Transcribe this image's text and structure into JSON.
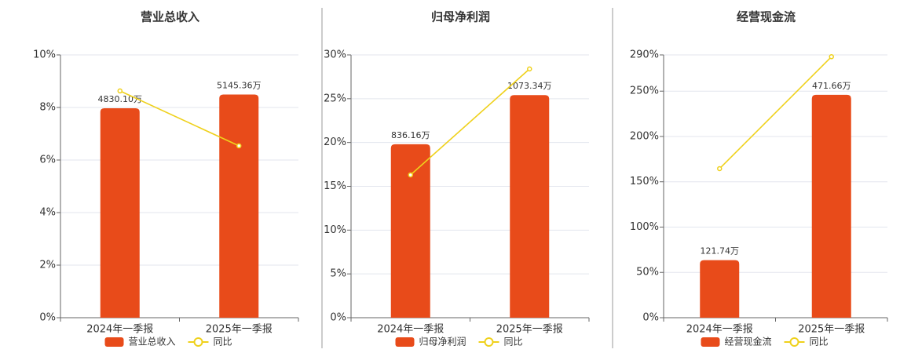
{
  "chart_data": [
    {
      "type": "bar_line",
      "title": "营业总收入",
      "categories": [
        "2024年一季报",
        "2025年一季报"
      ],
      "series": [
        {
          "name": "营业总收入",
          "color": "#e84b1a",
          "values": [
            4830.1,
            5145.36
          ],
          "value_labels": [
            "4830.10万",
            "5145.36万"
          ],
          "axis": "y2"
        },
        {
          "name": "同比",
          "color": "#efd11c",
          "values": [
            8.63,
            6.54
          ]
        }
      ],
      "ylim": [
        0,
        10
      ],
      "yticks": [
        {
          "value": 0,
          "label": "0%"
        },
        {
          "value": 2,
          "label": "2%"
        },
        {
          "value": 4,
          "label": "4%"
        },
        {
          "value": 6,
          "label": "6%"
        },
        {
          "value": 8,
          "label": "8%"
        },
        {
          "value": 10,
          "label": "10%"
        }
      ],
      "y2lim": [
        0,
        6060
      ],
      "grid": true
    },
    {
      "type": "bar_line",
      "title": "归母净利润",
      "categories": [
        "2024年一季报",
        "2025年一季报"
      ],
      "series": [
        {
          "name": "归母净利润",
          "color": "#e84b1a",
          "values": [
            836.16,
            1073.34
          ],
          "value_labels": [
            "836.16万",
            "1073.34万"
          ],
          "axis": "y2"
        },
        {
          "name": "同比",
          "color": "#efd11c",
          "values": [
            16.3,
            28.4
          ]
        }
      ],
      "ylim": [
        0,
        30
      ],
      "yticks": [
        {
          "value": 0,
          "label": "0%"
        },
        {
          "value": 5,
          "label": "5%"
        },
        {
          "value": 10,
          "label": "10%"
        },
        {
          "value": 15,
          "label": "15%"
        },
        {
          "value": 20,
          "label": "20%"
        },
        {
          "value": 25,
          "label": "25%"
        },
        {
          "value": 30,
          "label": "30%"
        }
      ],
      "y2lim": [
        0,
        1267
      ],
      "grid": true
    },
    {
      "type": "bar_line",
      "title": "经营现金流",
      "categories": [
        "2024年一季报",
        "2025年一季报"
      ],
      "series": [
        {
          "name": "经营现金流",
          "color": "#e84b1a",
          "values": [
            121.74,
            471.66
          ],
          "value_labels": [
            "121.74万",
            "471.66万"
          ],
          "axis": "y2"
        },
        {
          "name": "同比",
          "color": "#efd11c",
          "values": [
            164.5,
            288
          ]
        }
      ],
      "ylim": [
        0,
        290
      ],
      "yticks": [
        {
          "value": 0,
          "label": "0%"
        },
        {
          "value": 50,
          "label": "50%"
        },
        {
          "value": 100,
          "label": "100%"
        },
        {
          "value": 150,
          "label": "150%"
        },
        {
          "value": 200,
          "label": "200%"
        },
        {
          "value": 250,
          "label": "250%"
        },
        {
          "value": 290,
          "label": "290%"
        }
      ],
      "y2lim": [
        0,
        556
      ],
      "grid": true
    }
  ]
}
